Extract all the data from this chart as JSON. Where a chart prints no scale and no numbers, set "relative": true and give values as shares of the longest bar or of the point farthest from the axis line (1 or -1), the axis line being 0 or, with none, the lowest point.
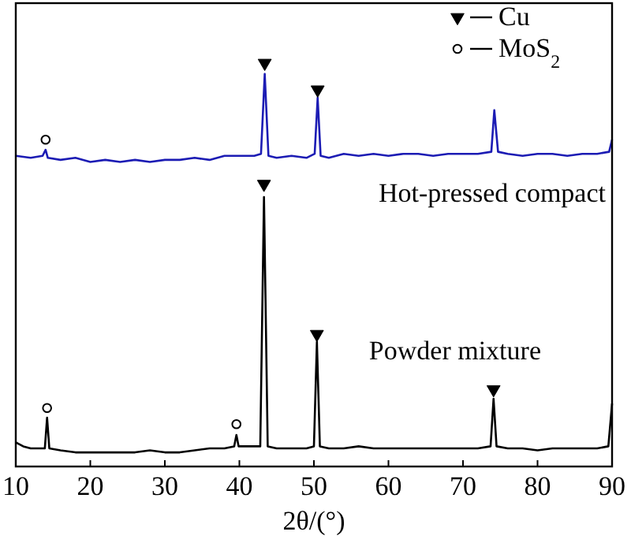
{
  "chart_data": {
    "type": "line",
    "relative": true,
    "xlabel": "2θ/(°)",
    "xlim": [
      10,
      90
    ],
    "xticks": [
      10,
      20,
      30,
      40,
      50,
      60,
      70,
      80,
      90
    ],
    "grid": false,
    "legend": "top right",
    "series": [
      {
        "name": "Hot-pressed compact",
        "color": "#1c1cb4",
        "x": [
          10,
          12,
          13.6,
          14,
          14.3,
          16,
          18,
          20,
          22,
          24,
          26,
          28,
          30,
          32,
          34,
          36,
          38,
          40,
          42,
          42.9,
          43.4,
          43.9,
          45,
          47,
          49,
          50.1,
          50.5,
          50.9,
          52,
          54,
          56,
          58,
          60,
          62,
          64,
          66,
          68,
          70,
          72,
          73.8,
          74.2,
          74.7,
          76,
          78,
          80,
          82,
          84,
          86,
          88,
          89.6,
          90
        ],
        "values": [
          0.77,
          0.765,
          0.77,
          0.785,
          0.765,
          0.76,
          0.765,
          0.755,
          0.76,
          0.755,
          0.76,
          0.755,
          0.76,
          0.76,
          0.765,
          0.76,
          0.77,
          0.77,
          0.77,
          0.775,
          0.973,
          0.77,
          0.765,
          0.77,
          0.765,
          0.775,
          0.914,
          0.77,
          0.765,
          0.775,
          0.77,
          0.775,
          0.77,
          0.775,
          0.775,
          0.77,
          0.775,
          0.775,
          0.775,
          0.78,
          0.883,
          0.78,
          0.775,
          0.77,
          0.775,
          0.775,
          0.77,
          0.775,
          0.775,
          0.78,
          0.81
        ]
      },
      {
        "name": "Powder mixture",
        "color": "#000000",
        "x": [
          10,
          11,
          12,
          13.9,
          14.2,
          14.5,
          16,
          18,
          20,
          22,
          24,
          26,
          28,
          30,
          32,
          34,
          36,
          38,
          39.3,
          39.6,
          39.9,
          41,
          42.8,
          43.3,
          43.8,
          45,
          47,
          49,
          50,
          50.4,
          50.8,
          52,
          54,
          56,
          58,
          60,
          62,
          64,
          66,
          68,
          70,
          72,
          73.7,
          74.1,
          74.5,
          76,
          78,
          80,
          82,
          84,
          86,
          88,
          89.5,
          90
        ],
        "values": [
          0.06,
          0.05,
          0.045,
          0.045,
          0.121,
          0.045,
          0.04,
          0.035,
          0.035,
          0.035,
          0.035,
          0.035,
          0.04,
          0.035,
          0.035,
          0.04,
          0.045,
          0.045,
          0.05,
          0.078,
          0.05,
          0.05,
          0.05,
          0.668,
          0.05,
          0.045,
          0.045,
          0.045,
          0.05,
          0.309,
          0.05,
          0.045,
          0.045,
          0.05,
          0.045,
          0.045,
          0.045,
          0.045,
          0.045,
          0.045,
          0.045,
          0.045,
          0.05,
          0.168,
          0.05,
          0.045,
          0.045,
          0.04,
          0.045,
          0.045,
          0.045,
          0.045,
          0.05,
          0.156
        ]
      },
      {
        "name": "Cu",
        "type": "scatter",
        "marker": "triangle",
        "color": "#000000",
        "x": [
          43.4,
          50.5,
          43.3,
          50.4,
          74.1
        ],
        "values": [
          1.0,
          0.934,
          0.7,
          0.328,
          0.191
        ]
      },
      {
        "name": "MoS$_{2}$",
        "type": "scatter",
        "marker": "circle",
        "color": "#000000",
        "x": [
          14,
          14.2,
          39.6
        ],
        "values": [
          0.81,
          0.145,
          0.105
        ]
      }
    ]
  }
}
